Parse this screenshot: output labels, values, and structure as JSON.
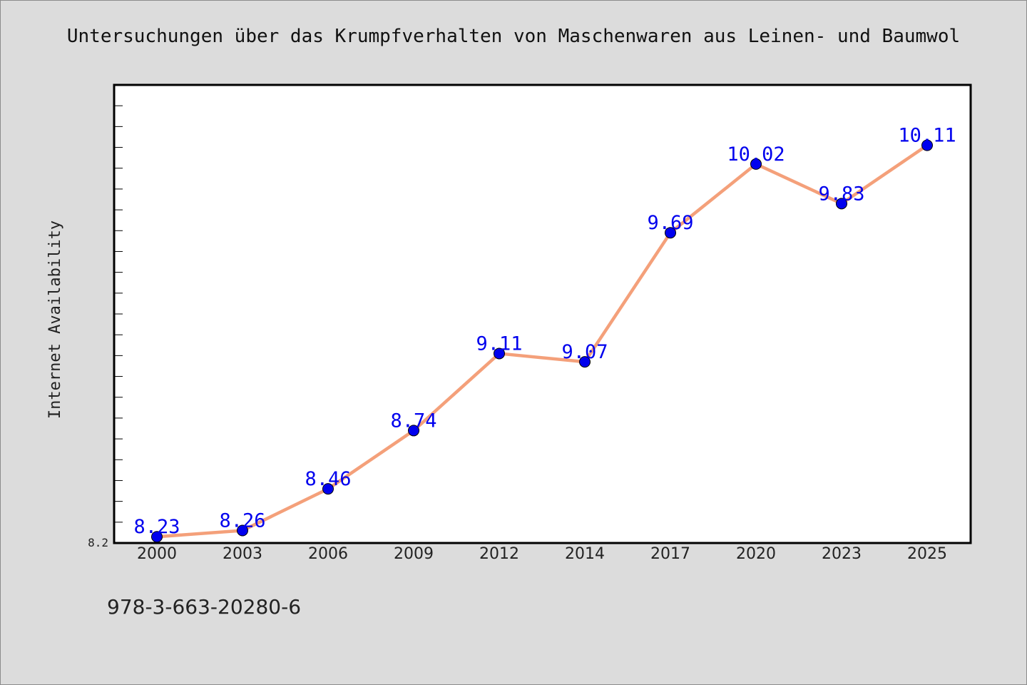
{
  "chart_data": {
    "type": "line",
    "title": "Untersuchungen über das Krumpfverhalten von Maschenwaren aus Leinen- und Baumwol",
    "xlabel": "",
    "ylabel": "Internet Availability",
    "categories": [
      "2000",
      "2003",
      "2006",
      "2009",
      "2012",
      "2014",
      "2017",
      "2020",
      "2023",
      "2025"
    ],
    "values": [
      8.23,
      8.26,
      8.46,
      8.74,
      9.11,
      9.07,
      9.69,
      10.02,
      9.83,
      10.11
    ],
    "data_labels": [
      "8.23",
      "8.26",
      "8.46",
      "8.74",
      "9.11",
      "9.07",
      "9.69",
      "10.02",
      "9.83",
      "10.11"
    ],
    "y_tick_labels": [
      "8.2"
    ],
    "ylim": [
      8.2,
      10.4
    ],
    "grid": false,
    "colors": {
      "line": "#f4a07a",
      "marker": "#0000ee",
      "data_label": "#0000ee",
      "plot_background": "#ffffff",
      "page_background": "#dcdcdc"
    }
  },
  "footer": {
    "isbn": "978-3-663-20280-6"
  }
}
